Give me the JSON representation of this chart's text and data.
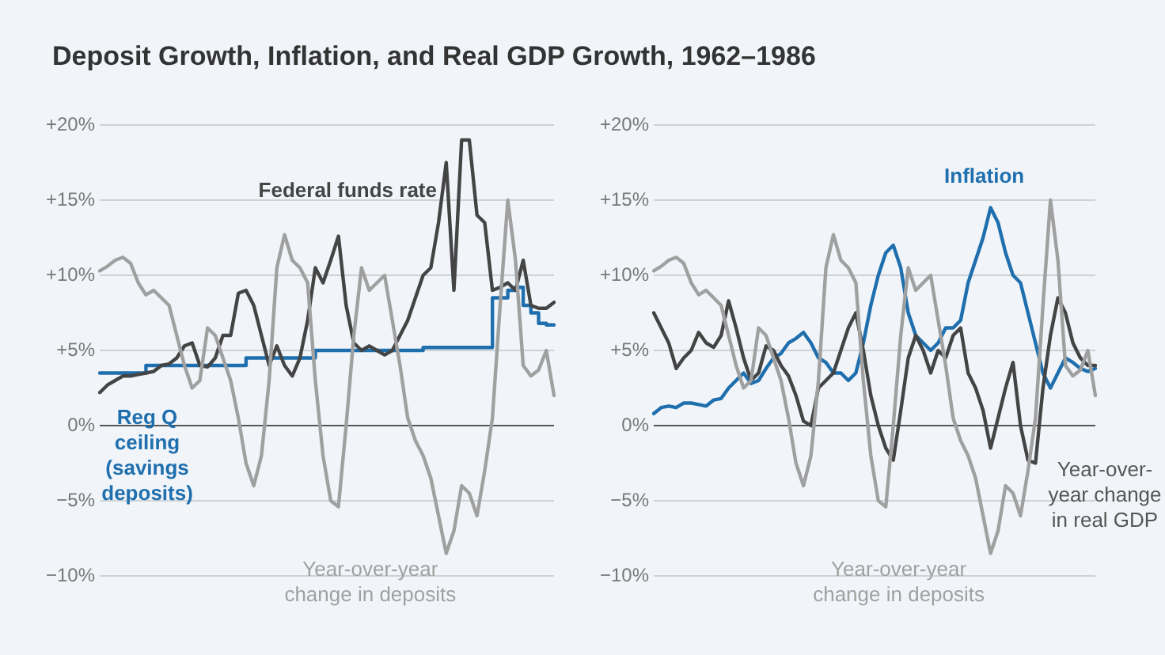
{
  "chart_data": [
    {
      "type": "line",
      "title": "Deposit Growth, Inflation, and Real GDP Growth, 1962–1986",
      "categories": [
        null,
        null,
        null,
        null,
        null,
        null,
        null,
        null,
        null,
        null,
        null,
        null,
        null,
        null,
        null,
        null,
        null,
        null,
        null,
        null,
        null,
        null,
        null,
        null,
        null,
        null,
        null,
        null,
        null,
        null,
        null,
        null,
        null,
        null,
        null,
        null,
        null,
        null,
        null,
        null,
        null,
        null,
        null,
        null,
        null,
        null,
        null,
        null,
        null,
        null,
        null,
        null,
        null,
        null,
        null,
        null,
        null,
        null,
        null,
        null
      ],
      "ylim": [
        -10,
        20
      ],
      "yticks": [
        {
          "value": -10,
          "label": "−10%"
        },
        {
          "value": -5,
          "label": "−5%"
        },
        {
          "value": 0,
          "label": "0%"
        },
        {
          "value": 5,
          "label": "+5%"
        },
        {
          "value": 10,
          "label": "+10%"
        },
        {
          "value": 15,
          "label": "+15%"
        },
        {
          "value": 20,
          "label": "+20%"
        }
      ],
      "grid": "y",
      "legend": false,
      "tick_labels": "y",
      "marker": "none",
      "line_style": "solid",
      "series": [
        {
          "name": "Year-over-year change in deposits",
          "color": "#a0a0a0",
          "values": [
            10.3,
            10.6,
            11.0,
            11.2,
            10.8,
            9.5,
            8.7,
            9.0,
            8.5,
            8.0,
            6.0,
            4.0,
            2.5,
            3.0,
            6.5,
            6.0,
            4.5,
            3.0,
            0.5,
            -2.5,
            -4.0,
            -2.0,
            3.0,
            10.5,
            12.7,
            11.0,
            10.5,
            9.5,
            3.0,
            -2.0,
            -5.0,
            -5.4,
            0.0,
            6.0,
            10.5,
            9.0,
            9.5,
            10.0,
            7.0,
            4.0,
            0.5,
            -1.0,
            -2.0,
            -3.5,
            -6.0,
            -8.5,
            -7.0,
            -4.0,
            -4.5,
            -6.0,
            -3.0,
            0.5,
            8.0,
            15.0,
            11.0,
            4.0,
            3.3,
            3.7,
            5.0,
            2.0
          ]
        },
        {
          "name": "Federal funds rate",
          "color": "#444444",
          "values": [
            2.2,
            2.7,
            3.0,
            3.3,
            3.3,
            3.4,
            3.5,
            3.6,
            4.0,
            4.1,
            4.5,
            5.3,
            5.5,
            4.0,
            3.9,
            4.5,
            6.0,
            6.0,
            8.8,
            9.0,
            8.0,
            6.0,
            4.0,
            5.3,
            4.0,
            3.3,
            4.5,
            7.0,
            10.5,
            9.5,
            11.0,
            12.6,
            8.0,
            5.5,
            5.0,
            5.3,
            5.0,
            4.7,
            5.0,
            6.0,
            7.0,
            8.5,
            10.0,
            10.5,
            13.5,
            17.5,
            9.0,
            19.0,
            19.0,
            14.0,
            13.5,
            9.0,
            9.2,
            9.5,
            9.0,
            11.0,
            8.0,
            7.8,
            7.8,
            8.2
          ]
        },
        {
          "name": "Reg Q ceiling (savings deposits)",
          "type": "step",
          "color": "#1f6fae",
          "values": [
            3.5,
            3.5,
            3.5,
            3.5,
            3.5,
            3.5,
            3.5,
            4.0,
            4.0,
            4.0,
            4.0,
            4.0,
            4.0,
            4.0,
            4.0,
            4.0,
            4.0,
            4.0,
            4.0,
            4.0,
            4.5,
            4.5,
            4.5,
            4.5,
            4.5,
            4.5,
            4.5,
            4.5,
            4.5,
            5.0,
            5.0,
            5.0,
            5.0,
            5.0,
            5.0,
            5.0,
            5.0,
            5.0,
            5.0,
            5.0,
            5.0,
            5.0,
            5.0,
            5.2,
            5.2,
            5.2,
            5.2,
            5.2,
            5.2,
            5.2,
            5.2,
            5.2,
            8.5,
            8.5,
            9.0,
            9.2,
            8.0,
            7.5,
            6.8,
            6.7
          ]
        }
      ]
    },
    {
      "type": "line",
      "categories": [
        null,
        null,
        null,
        null,
        null,
        null,
        null,
        null,
        null,
        null,
        null,
        null,
        null,
        null,
        null,
        null,
        null,
        null,
        null,
        null,
        null,
        null,
        null,
        null,
        null,
        null,
        null,
        null,
        null,
        null,
        null,
        null,
        null,
        null,
        null,
        null,
        null,
        null,
        null,
        null,
        null,
        null,
        null,
        null,
        null,
        null,
        null,
        null,
        null,
        null,
        null,
        null,
        null,
        null,
        null,
        null,
        null,
        null,
        null,
        null
      ],
      "ylim": [
        -10,
        20
      ],
      "yticks": [
        {
          "value": -10,
          "label": "−10%"
        },
        {
          "value": -5,
          "label": "−5%"
        },
        {
          "value": 0,
          "label": "0%"
        },
        {
          "value": 5,
          "label": "+5%"
        },
        {
          "value": 10,
          "label": "+10%"
        },
        {
          "value": 15,
          "label": "+15%"
        },
        {
          "value": 20,
          "label": "+20%"
        }
      ],
      "grid": "y",
      "legend": false,
      "tick_labels": "y",
      "marker": "none",
      "line_style": "solid",
      "series": [
        {
          "name": "Year-over-year change in deposits",
          "color": "#a0a0a0",
          "values": [
            10.3,
            10.6,
            11.0,
            11.2,
            10.8,
            9.5,
            8.7,
            9.0,
            8.5,
            8.0,
            6.0,
            4.0,
            2.5,
            3.0,
            6.5,
            6.0,
            4.5,
            3.0,
            0.5,
            -2.5,
            -4.0,
            -2.0,
            3.0,
            10.5,
            12.7,
            11.0,
            10.5,
            9.5,
            3.0,
            -2.0,
            -5.0,
            -5.4,
            0.0,
            6.0,
            10.5,
            9.0,
            9.5,
            10.0,
            7.0,
            4.0,
            0.5,
            -1.0,
            -2.0,
            -3.5,
            -6.0,
            -8.5,
            -7.0,
            -4.0,
            -4.5,
            -6.0,
            -3.0,
            0.5,
            8.0,
            15.0,
            11.0,
            4.0,
            3.3,
            3.7,
            5.0,
            2.0
          ]
        },
        {
          "name": "Year-over-year change in real GDP",
          "color": "#444444",
          "values": [
            7.5,
            6.5,
            5.5,
            3.8,
            4.5,
            5.0,
            6.2,
            5.5,
            5.2,
            6.0,
            8.3,
            6.5,
            4.5,
            3.0,
            3.5,
            5.3,
            5.0,
            4.0,
            3.3,
            2.0,
            0.3,
            0.0,
            2.5,
            3.0,
            3.5,
            5.0,
            6.5,
            7.5,
            5.0,
            2.0,
            0.0,
            -1.5,
            -2.3,
            1.0,
            4.5,
            6.0,
            5.0,
            3.5,
            5.0,
            4.5,
            6.0,
            6.5,
            3.5,
            2.5,
            1.0,
            -1.5,
            0.5,
            2.5,
            4.2,
            0.0,
            -2.3,
            -2.5,
            2.5,
            6.0,
            8.5,
            7.5,
            5.5,
            4.5,
            4.0,
            4.0
          ]
        },
        {
          "name": "Inflation",
          "color": "#1f6fae",
          "values": [
            0.8,
            1.2,
            1.3,
            1.2,
            1.5,
            1.5,
            1.4,
            1.3,
            1.7,
            1.8,
            2.5,
            3.0,
            3.5,
            2.8,
            3.0,
            3.8,
            4.5,
            4.8,
            5.5,
            5.8,
            6.2,
            5.5,
            4.5,
            4.2,
            3.5,
            3.5,
            3.0,
            3.5,
            5.5,
            8.0,
            10.0,
            11.5,
            12.0,
            10.5,
            7.5,
            6.0,
            5.5,
            5.0,
            5.5,
            6.5,
            6.5,
            7.0,
            9.5,
            11.0,
            12.5,
            14.5,
            13.5,
            11.5,
            10.0,
            9.5,
            7.5,
            5.5,
            3.5,
            2.5,
            3.5,
            4.5,
            4.2,
            3.8,
            3.6,
            3.8
          ]
        }
      ]
    }
  ]
}
